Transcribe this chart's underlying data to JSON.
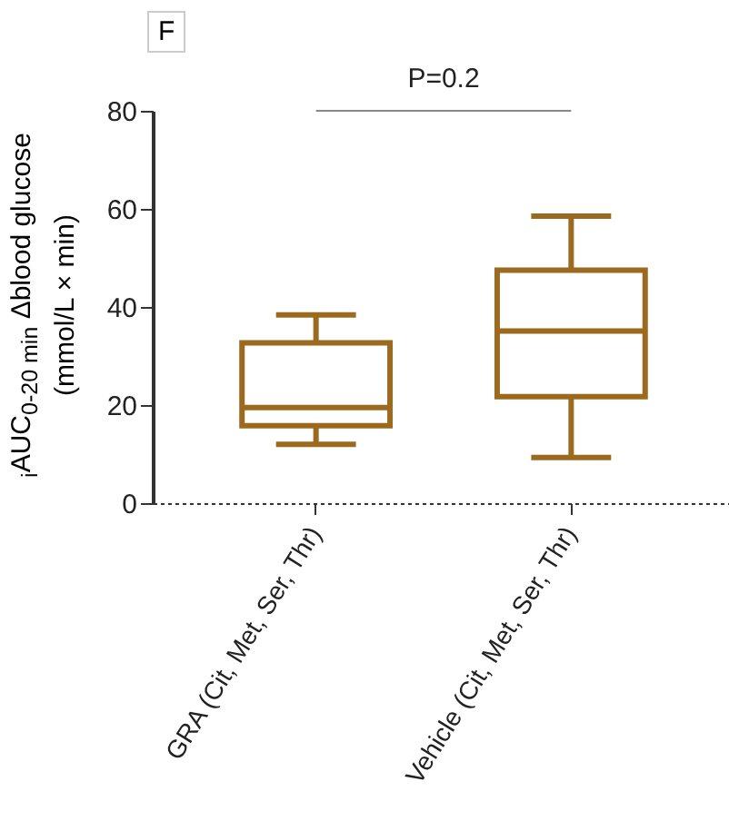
{
  "chart_data": {
    "type": "box",
    "ylabel": "$_{i}$AUC$_{0-20 min}$ Δblood glucose (mmol/L × min)",
    "categories": [
      "GRA (Cit, Met, Ser, Thr)",
      "Vehicle (Cit, Met, Ser, Thr)"
    ],
    "boxes": [
      {
        "low": 12,
        "q1": 15.8,
        "median": 19.5,
        "q3": 32.7,
        "high": 38.4
      },
      {
        "low": 9.3,
        "q1": 21.7,
        "median": 35.1,
        "q3": 47.5,
        "high": 58.5
      }
    ],
    "color": "#9c6a1e",
    "ylim": [
      0,
      80
    ],
    "yticks": [
      0,
      20,
      40,
      60,
      80
    ],
    "annotations": [
      "F",
      "P=0.2"
    ],
    "grid": false
  }
}
